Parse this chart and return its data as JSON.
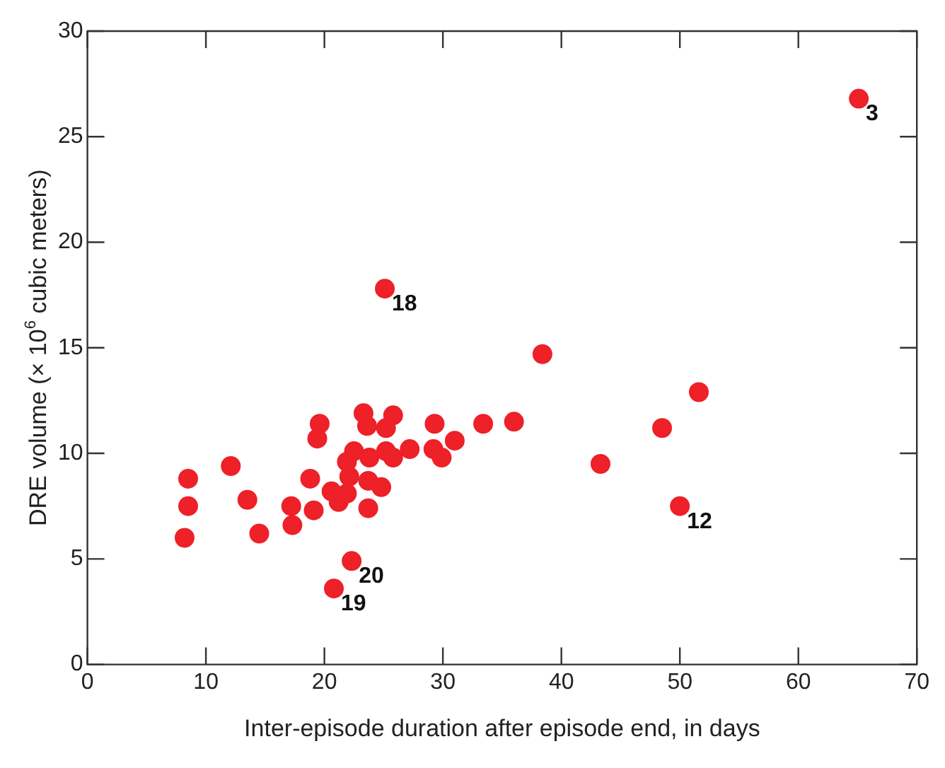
{
  "chart_data": {
    "type": "scatter",
    "xlabel": "Inter-episode duration after episode end, in days",
    "ylabel": "DRE volume (× 10$^{6}$ cubic meters)",
    "xlim": [
      0,
      70
    ],
    "xticks": [
      0,
      10,
      20,
      30,
      40,
      50,
      60,
      70
    ],
    "ylim": [
      0,
      30
    ],
    "yticks": [
      0,
      5,
      10,
      15,
      20,
      25,
      30
    ],
    "grid": false,
    "marker": "circle",
    "series": [
      {
        "color": "#ee2028",
        "x": [
          8.5,
          8.5,
          8.2,
          12.1,
          13.5,
          14.5,
          17.2,
          17.3,
          18.8,
          19.1,
          19.6,
          19.4,
          20.6,
          21.2,
          21.9,
          22.1,
          21.9,
          22.5,
          23.8,
          23.3,
          23.6,
          23.7,
          23.7,
          24.8,
          25.8,
          25.2,
          25.2,
          25.8,
          27.2,
          29.3,
          29.2,
          29.9,
          31.0,
          33.4,
          36.0,
          38.4,
          43.3,
          48.5,
          51.6,
          50.0,
          65.1,
          25.1,
          22.3,
          20.8
        ],
        "values": [
          8.8,
          7.5,
          6.0,
          9.4,
          7.8,
          6.2,
          7.5,
          6.6,
          8.8,
          7.3,
          11.4,
          10.7,
          8.2,
          7.7,
          8.1,
          8.9,
          9.6,
          10.1,
          9.8,
          11.9,
          11.3,
          8.7,
          7.4,
          8.4,
          11.8,
          11.2,
          10.1,
          9.8,
          10.2,
          11.4,
          10.2,
          9.8,
          10.6,
          11.4,
          11.5,
          14.7,
          9.5,
          11.2,
          12.9,
          7.5,
          26.8,
          17.8,
          4.9,
          3.6
        ]
      }
    ],
    "annotations": [
      {
        "text": "3",
        "x": 65.1,
        "y": 26.8
      },
      {
        "text": "18",
        "x": 25.1,
        "y": 17.8
      },
      {
        "text": "12",
        "x": 50.0,
        "y": 7.5
      },
      {
        "text": "20",
        "x": 22.3,
        "y": 4.9
      },
      {
        "text": "19",
        "x": 20.8,
        "y": 3.6
      }
    ]
  }
}
